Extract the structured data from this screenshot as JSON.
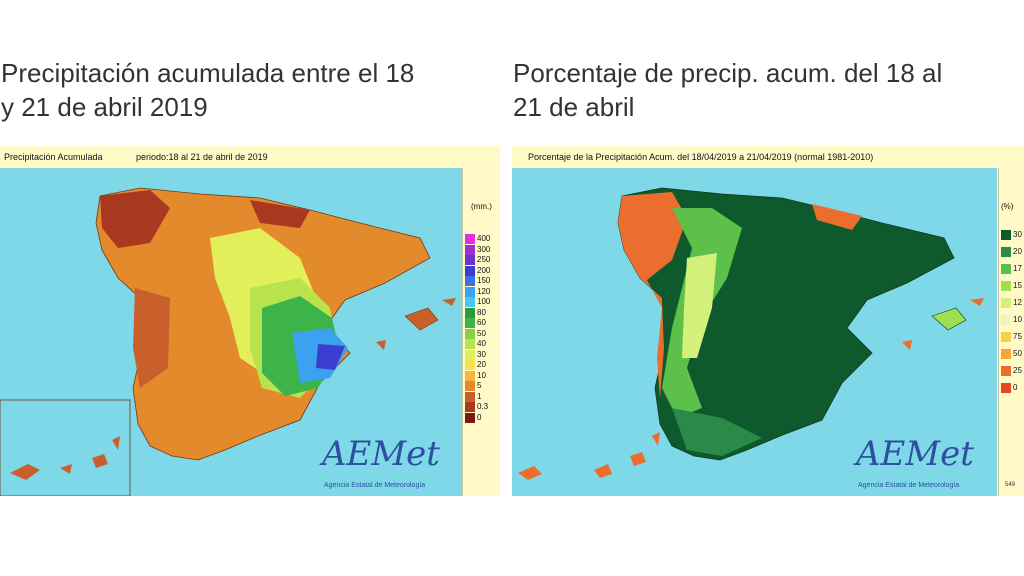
{
  "headings": {
    "left": "Precipitación acumulada entre el 18 y 21 de abril 2019",
    "right": "Porcentaje de precip. acum. del 18 al 21 de abril"
  },
  "left_panel": {
    "title": "Precipitación Acumulada",
    "period": "periodo:18 al 21 de abril de 2019",
    "unit": "(mm.)",
    "legend": [
      {
        "label": "400",
        "color": "#e22ee0"
      },
      {
        "label": "300",
        "color": "#a12fd9"
      },
      {
        "label": "250",
        "color": "#6a34c8"
      },
      {
        "label": "200",
        "color": "#3a3fd0"
      },
      {
        "label": "150",
        "color": "#3f6fe6"
      },
      {
        "label": "120",
        "color": "#3aa2ee"
      },
      {
        "label": "100",
        "color": "#44c8f0"
      },
      {
        "label": "80",
        "color": "#2a9a3c"
      },
      {
        "label": "60",
        "color": "#3cb44a"
      },
      {
        "label": "50",
        "color": "#84d24a"
      },
      {
        "label": "40",
        "color": "#b8e34c"
      },
      {
        "label": "30",
        "color": "#e2ef5a"
      },
      {
        "label": "20",
        "color": "#f6e24a"
      },
      {
        "label": "10",
        "color": "#f4b63c"
      },
      {
        "label": "5",
        "color": "#e8862e"
      },
      {
        "label": "1",
        "color": "#c9602c"
      },
      {
        "label": "0.3",
        "color": "#a8391f"
      },
      {
        "label": "0",
        "color": "#7a1a10"
      }
    ],
    "logo": "AEMet",
    "agency": "Agencia Estatal de Meteorología"
  },
  "right_panel": {
    "title": "Porcentaje de la Precipitación Acum. del 18/04/2019 a  21/04/2019  (normal 1981-2010)",
    "unit": "(%)",
    "legend": [
      {
        "label": "30",
        "color": "#0f5a2c"
      },
      {
        "label": "20",
        "color": "#2a8a48"
      },
      {
        "label": "17",
        "color": "#5cc04a"
      },
      {
        "label": "15",
        "color": "#9ee050"
      },
      {
        "label": "12",
        "color": "#d2f07a"
      },
      {
        "label": "10",
        "color": "#f4f4c0"
      },
      {
        "label": "75",
        "color": "#f6d04a"
      },
      {
        "label": "50",
        "color": "#f4a83a"
      },
      {
        "label": "25",
        "color": "#ec6e2e"
      },
      {
        "label": "0",
        "color": "#e44826"
      }
    ],
    "logo": "AEMet",
    "agency": "Agencia Estatal de Meteorología",
    "note": "549"
  }
}
